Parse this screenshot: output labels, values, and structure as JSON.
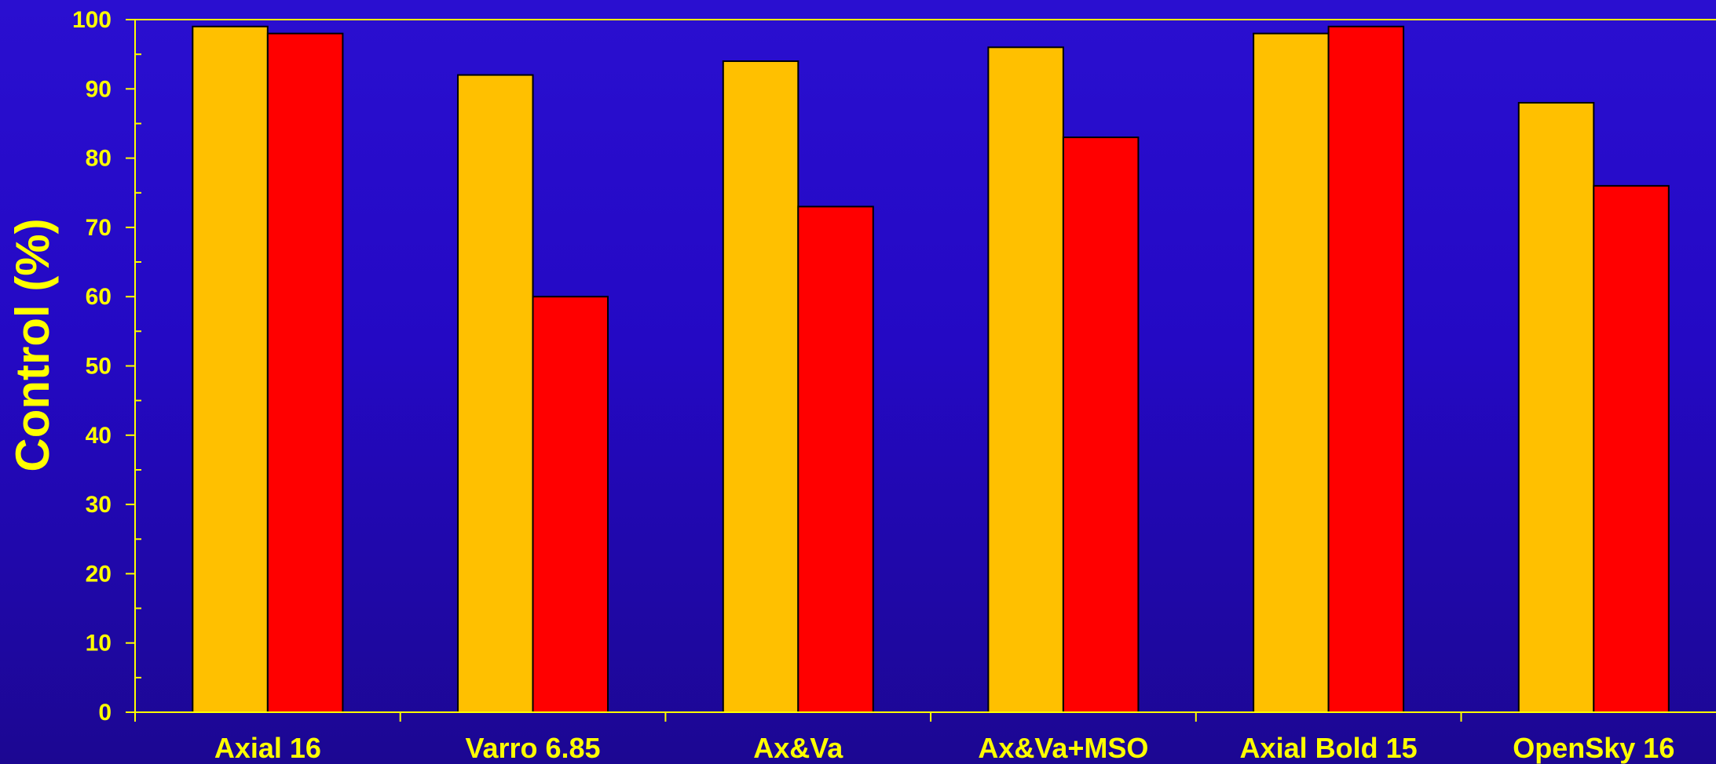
{
  "chart_data": {
    "type": "bar",
    "title": "",
    "xlabel": "",
    "ylabel": "Control (%)",
    "ylim": [
      0,
      100
    ],
    "yticks": [
      "0",
      "10",
      "20",
      "30",
      "40",
      "50",
      "60",
      "70",
      "80",
      "90",
      "100"
    ],
    "categories": [
      "Axial 16",
      "Varro 6.85",
      "Ax&Va",
      "Ax&Va+MSO",
      "Axial Bold 15",
      "OpenSky 16"
    ],
    "series": [
      {
        "values": [
          99,
          92,
          94,
          96,
          98,
          88
        ],
        "color": "#ffc000"
      },
      {
        "values": [
          98,
          60,
          73,
          83,
          99,
          76
        ],
        "color": "#ff0000"
      }
    ],
    "grid": false,
    "legend": "none"
  },
  "colors": {
    "axis": "#ffff00",
    "text": "#ffff00",
    "background_top": "#2a0fd0",
    "background_bottom": "#1c0792"
  }
}
